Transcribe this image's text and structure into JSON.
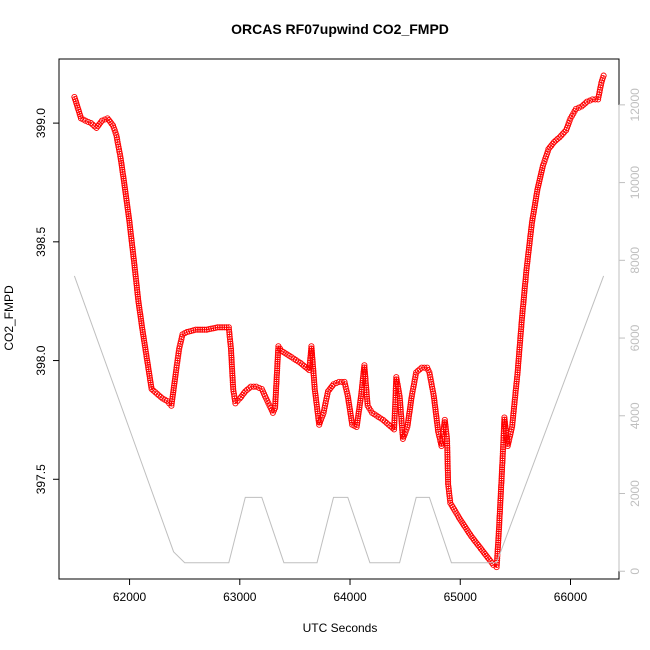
{
  "chart_data": {
    "type": "scatter",
    "title": "ORCAS RF07upwind CO2_FMPD",
    "xlabel": "UTC Seconds",
    "ylabel": "CO2_FMPD",
    "xlim": [
      61360,
      66440
    ],
    "ylim": [
      397.08,
      399.27
    ],
    "y2lim": [
      -200,
      13180
    ],
    "x_ticks": [
      {
        "value": 62000,
        "label": "62000"
      },
      {
        "value": 63000,
        "label": "63000"
      },
      {
        "value": 64000,
        "label": "64000"
      },
      {
        "value": 65000,
        "label": "65000"
      },
      {
        "value": 66000,
        "label": "66000"
      }
    ],
    "y_ticks": [
      {
        "value": 397.5,
        "label": "397.5"
      },
      {
        "value": 398.0,
        "label": "398.0"
      },
      {
        "value": 398.5,
        "label": "398.5"
      },
      {
        "value": 399.0,
        "label": "399.0"
      }
    ],
    "y2_ticks": [
      {
        "value": 0,
        "label": "0"
      },
      {
        "value": 2000,
        "label": "2000"
      },
      {
        "value": 4000,
        "label": "4000"
      },
      {
        "value": 6000,
        "label": "6000"
      },
      {
        "value": 8000,
        "label": "8000"
      },
      {
        "value": 10000,
        "label": "10000"
      },
      {
        "value": 12000,
        "label": "12000"
      }
    ],
    "series": [
      {
        "marker": "open-circle",
        "color": "#ff0000",
        "axis": "left",
        "points": [
          [
            61500,
            399.11
          ],
          [
            61560,
            399.02
          ],
          [
            61600,
            399.01
          ],
          [
            61650,
            399.0
          ],
          [
            61700,
            398.98
          ],
          [
            61750,
            399.01
          ],
          [
            61800,
            399.02
          ],
          [
            61850,
            398.99
          ],
          [
            61880,
            398.95
          ],
          [
            61920,
            398.85
          ],
          [
            61960,
            398.72
          ],
          [
            62000,
            398.58
          ],
          [
            62040,
            398.42
          ],
          [
            62080,
            398.25
          ],
          [
            62120,
            398.12
          ],
          [
            62160,
            398.0
          ],
          [
            62200,
            397.88
          ],
          [
            62250,
            397.86
          ],
          [
            62300,
            397.84
          ],
          [
            62340,
            397.83
          ],
          [
            62380,
            397.81
          ],
          [
            62420,
            397.95
          ],
          [
            62450,
            398.05
          ],
          [
            62480,
            398.11
          ],
          [
            62520,
            398.12
          ],
          [
            62600,
            398.13
          ],
          [
            62700,
            398.13
          ],
          [
            62800,
            398.14
          ],
          [
            62900,
            398.14
          ],
          [
            62920,
            398.05
          ],
          [
            62940,
            397.88
          ],
          [
            62960,
            397.82
          ],
          [
            63000,
            397.84
          ],
          [
            63050,
            397.87
          ],
          [
            63100,
            397.89
          ],
          [
            63150,
            397.89
          ],
          [
            63200,
            397.88
          ],
          [
            63250,
            397.83
          ],
          [
            63300,
            397.78
          ],
          [
            63320,
            397.8
          ],
          [
            63350,
            398.06
          ],
          [
            63380,
            398.04
          ],
          [
            63450,
            398.02
          ],
          [
            63550,
            397.99
          ],
          [
            63630,
            397.96
          ],
          [
            63650,
            398.06
          ],
          [
            63680,
            397.88
          ],
          [
            63720,
            397.73
          ],
          [
            63760,
            397.78
          ],
          [
            63800,
            397.87
          ],
          [
            63850,
            397.9
          ],
          [
            63900,
            397.91
          ],
          [
            63950,
            397.91
          ],
          [
            63980,
            397.85
          ],
          [
            64020,
            397.73
          ],
          [
            64060,
            397.72
          ],
          [
            64100,
            397.85
          ],
          [
            64130,
            397.98
          ],
          [
            64160,
            397.81
          ],
          [
            64200,
            397.78
          ],
          [
            64300,
            397.75
          ],
          [
            64400,
            397.71
          ],
          [
            64420,
            397.93
          ],
          [
            64450,
            397.85
          ],
          [
            64480,
            397.67
          ],
          [
            64520,
            397.72
          ],
          [
            64560,
            397.85
          ],
          [
            64600,
            397.95
          ],
          [
            64650,
            397.97
          ],
          [
            64700,
            397.97
          ],
          [
            64720,
            397.95
          ],
          [
            64760,
            397.85
          ],
          [
            64800,
            397.7
          ],
          [
            64830,
            397.64
          ],
          [
            64860,
            397.75
          ],
          [
            64880,
            397.67
          ],
          [
            64890,
            397.48
          ],
          [
            64910,
            397.4
          ],
          [
            65000,
            397.33
          ],
          [
            65100,
            397.26
          ],
          [
            65200,
            397.2
          ],
          [
            65300,
            397.14
          ],
          [
            65330,
            397.13
          ],
          [
            65350,
            397.28
          ],
          [
            65380,
            397.55
          ],
          [
            65400,
            397.76
          ],
          [
            65430,
            397.64
          ],
          [
            65470,
            397.72
          ],
          [
            65520,
            397.95
          ],
          [
            65560,
            398.18
          ],
          [
            65600,
            398.38
          ],
          [
            65650,
            398.58
          ],
          [
            65700,
            398.72
          ],
          [
            65750,
            398.82
          ],
          [
            65800,
            398.89
          ],
          [
            65850,
            398.92
          ],
          [
            65900,
            398.94
          ],
          [
            65960,
            398.97
          ],
          [
            66000,
            399.02
          ],
          [
            66050,
            399.06
          ],
          [
            66100,
            399.07
          ],
          [
            66150,
            399.09
          ],
          [
            66200,
            399.1
          ],
          [
            66250,
            399.1
          ],
          [
            66280,
            399.17
          ],
          [
            66300,
            399.2
          ]
        ]
      },
      {
        "line": "solid",
        "color": "#bfbfbf",
        "axis": "right",
        "points": [
          [
            61500,
            7600
          ],
          [
            62400,
            500
          ],
          [
            62500,
            220
          ],
          [
            62900,
            220
          ],
          [
            63050,
            1900
          ],
          [
            63200,
            1900
          ],
          [
            63400,
            220
          ],
          [
            63700,
            220
          ],
          [
            63850,
            1900
          ],
          [
            63980,
            1900
          ],
          [
            64180,
            220
          ],
          [
            64450,
            220
          ],
          [
            64600,
            1900
          ],
          [
            64720,
            1900
          ],
          [
            64920,
            220
          ],
          [
            65330,
            220
          ],
          [
            66300,
            7600
          ]
        ]
      }
    ]
  }
}
